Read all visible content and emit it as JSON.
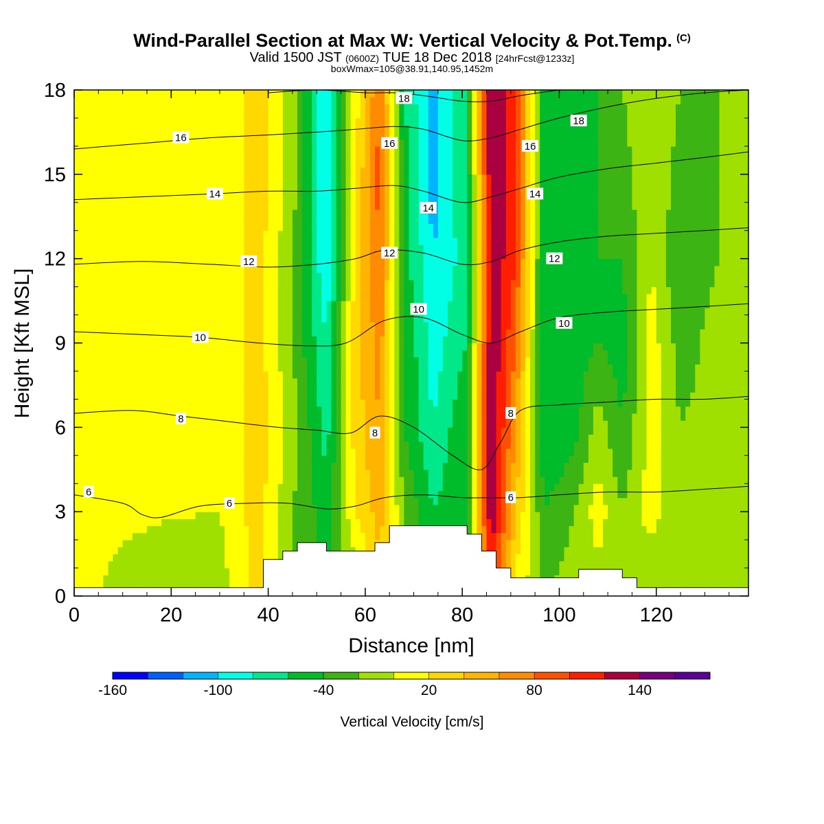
{
  "header": {
    "title": "Wind-Parallel Section at Max W: Vertical Velocity & Pot.Temp.",
    "copyright": "(C)",
    "valid_prefix": "Valid 1500 JST",
    "valid_utc": "(0600Z)",
    "valid_date": "TUE 18 Dec 2018",
    "forecast": "[24hrFcst@1233z]",
    "boxwmax": "boxWmax=105@38.91,140.95,1452m"
  },
  "chart_data": {
    "type": "heatmap",
    "xlabel": "Distance [nm]",
    "ylabel": "Height [Kft MSL]",
    "xlim": [
      0,
      139
    ],
    "ylim": [
      0,
      18
    ],
    "x_ticks": [
      0,
      20,
      40,
      60,
      80,
      100,
      120
    ],
    "y_ticks": [
      0,
      3,
      6,
      9,
      12,
      15,
      18
    ],
    "colorbar": {
      "title": "Vertical Velocity [cm/s]",
      "levels": [
        -160,
        -140,
        -120,
        -100,
        -80,
        -60,
        -40,
        -20,
        0,
        20,
        40,
        60,
        80,
        100,
        120,
        140,
        160,
        180
      ],
      "colors": [
        "#0000ff",
        "#0060ff",
        "#00b4ff",
        "#00ffe4",
        "#00e88a",
        "#00bb2a",
        "#3cb414",
        "#a0e000",
        "#ffff00",
        "#ffd800",
        "#ffb400",
        "#ff8c00",
        "#ff5000",
        "#ff1e00",
        "#aa0040",
        "#780080",
        "#5a0096"
      ],
      "tick_labels": [
        "-160",
        "-100",
        "-40",
        "20",
        "80",
        "140"
      ]
    },
    "velocity_columns": [
      {
        "x": 0,
        "w": [
          2,
          2,
          2,
          2,
          2,
          2,
          2
        ]
      },
      {
        "x": 30,
        "w": [
          -10,
          0,
          2,
          2,
          2,
          2,
          2
        ]
      },
      {
        "x": 38,
        "w": [
          30,
          30,
          30,
          30,
          30,
          30,
          30
        ]
      },
      {
        "x": 45,
        "w": [
          -20,
          -20,
          -10,
          -20,
          -20,
          -10,
          -10
        ]
      },
      {
        "x": 52,
        "w": [
          -40,
          -50,
          -70,
          -80,
          -100,
          -100,
          -100
        ]
      },
      {
        "x": 58,
        "w": [
          -20,
          20,
          30,
          30,
          30,
          20,
          10
        ]
      },
      {
        "x": 63,
        "w": [
          30,
          50,
          60,
          70,
          80,
          90,
          80
        ]
      },
      {
        "x": 68,
        "w": [
          -20,
          -20,
          -40,
          -40,
          -50,
          -50,
          -60
        ]
      },
      {
        "x": 74,
        "w": [
          -40,
          -60,
          -80,
          -90,
          -100,
          -110,
          -110
        ]
      },
      {
        "x": 81,
        "w": [
          -60,
          -40,
          -40,
          -60,
          -70,
          -60,
          -60
        ]
      },
      {
        "x": 86,
        "w": [
          100,
          140,
          140,
          140,
          140,
          140,
          140
        ]
      },
      {
        "x": 91,
        "w": [
          10,
          40,
          60,
          80,
          100,
          100,
          100
        ]
      },
      {
        "x": 97,
        "w": [
          -20,
          -40,
          -60,
          -60,
          -60,
          -60,
          -60
        ]
      },
      {
        "x": 103,
        "w": [
          -10,
          -20,
          -50,
          -50,
          -50,
          -50,
          -40
        ]
      },
      {
        "x": 108,
        "w": [
          -10,
          10,
          -10,
          -40,
          -40,
          -40,
          -40
        ]
      },
      {
        "x": 113,
        "w": [
          -10,
          -20,
          -40,
          -50,
          -40,
          -30,
          -20
        ]
      },
      {
        "x": 119,
        "w": [
          -20,
          10,
          10,
          10,
          0,
          0,
          0
        ]
      },
      {
        "x": 125,
        "w": [
          -20,
          -20,
          -20,
          -30,
          -40,
          -30,
          -20
        ]
      },
      {
        "x": 133,
        "w": [
          -20,
          -20,
          -10,
          -10,
          -20,
          -20,
          -20
        ]
      },
      {
        "x": 139,
        "w": [
          -20,
          -20,
          -10,
          -10,
          -10,
          -20,
          -20
        ]
      }
    ],
    "velocity_heights": [
      0,
      3,
      6,
      9,
      12,
      15,
      18
    ],
    "terrain": [
      [
        0,
        0.3
      ],
      [
        39,
        0.3
      ],
      [
        39,
        1.3
      ],
      [
        43,
        1.3
      ],
      [
        43,
        1.6
      ],
      [
        46,
        1.6
      ],
      [
        46,
        1.9
      ],
      [
        52,
        1.9
      ],
      [
        52,
        1.6
      ],
      [
        62,
        1.6
      ],
      [
        62,
        1.9
      ],
      [
        65,
        1.9
      ],
      [
        65,
        2.5
      ],
      [
        81,
        2.5
      ],
      [
        81,
        2.2
      ],
      [
        84,
        2.2
      ],
      [
        84,
        1.6
      ],
      [
        87,
        1.6
      ],
      [
        87,
        1.0
      ],
      [
        90,
        1.0
      ],
      [
        90,
        0.65
      ],
      [
        104,
        0.65
      ],
      [
        104,
        0.95
      ],
      [
        113,
        0.95
      ],
      [
        113,
        0.65
      ],
      [
        116,
        0.65
      ],
      [
        116,
        0.3
      ],
      [
        139,
        0.3
      ]
    ],
    "theta_contours": [
      {
        "label": "6",
        "points": [
          [
            0,
            3.6
          ],
          [
            10,
            3.3
          ],
          [
            14,
            2.9
          ],
          [
            18,
            2.8
          ],
          [
            26,
            3.2
          ],
          [
            36,
            3.3
          ],
          [
            44,
            3.3
          ],
          [
            52,
            3.1
          ],
          [
            58,
            3.2
          ],
          [
            64,
            3.5
          ],
          [
            72,
            3.6
          ],
          [
            80,
            3.5
          ],
          [
            86,
            3.5
          ],
          [
            92,
            3.5
          ],
          [
            100,
            3.6
          ],
          [
            110,
            3.7
          ],
          [
            120,
            3.7
          ],
          [
            130,
            3.8
          ],
          [
            139,
            3.9
          ]
        ]
      },
      {
        "label": "8",
        "points": [
          [
            0,
            6.5
          ],
          [
            12,
            6.6
          ],
          [
            22,
            6.4
          ],
          [
            32,
            6.2
          ],
          [
            42,
            6.0
          ],
          [
            50,
            5.9
          ],
          [
            57,
            5.8
          ],
          [
            63,
            6.4
          ],
          [
            70,
            6.0
          ],
          [
            78,
            5.0
          ],
          [
            84,
            4.5
          ],
          [
            88,
            5.5
          ],
          [
            92,
            6.6
          ],
          [
            100,
            6.8
          ],
          [
            110,
            6.9
          ],
          [
            120,
            7.0
          ],
          [
            130,
            7.0
          ],
          [
            139,
            7.1
          ]
        ]
      },
      {
        "label": "10",
        "points": [
          [
            0,
            9.4
          ],
          [
            14,
            9.3
          ],
          [
            26,
            9.2
          ],
          [
            38,
            9.0
          ],
          [
            48,
            8.9
          ],
          [
            56,
            9.0
          ],
          [
            64,
            9.8
          ],
          [
            72,
            9.9
          ],
          [
            80,
            9.3
          ],
          [
            86,
            9.0
          ],
          [
            92,
            9.4
          ],
          [
            100,
            9.9
          ],
          [
            110,
            10.1
          ],
          [
            120,
            10.2
          ],
          [
            130,
            10.3
          ],
          [
            139,
            10.4
          ]
        ]
      },
      {
        "label": "12",
        "points": [
          [
            0,
            11.8
          ],
          [
            14,
            11.9
          ],
          [
            28,
            11.8
          ],
          [
            40,
            11.7
          ],
          [
            50,
            11.8
          ],
          [
            58,
            12.0
          ],
          [
            64,
            12.3
          ],
          [
            72,
            12.2
          ],
          [
            80,
            11.8
          ],
          [
            86,
            11.9
          ],
          [
            92,
            12.3
          ],
          [
            100,
            12.6
          ],
          [
            110,
            12.8
          ],
          [
            120,
            12.9
          ],
          [
            130,
            13.0
          ],
          [
            139,
            13.1
          ]
        ]
      },
      {
        "label": "14",
        "points": [
          [
            0,
            14.1
          ],
          [
            14,
            14.2
          ],
          [
            28,
            14.3
          ],
          [
            40,
            14.4
          ],
          [
            50,
            14.4
          ],
          [
            58,
            14.5
          ],
          [
            66,
            14.6
          ],
          [
            72,
            14.4
          ],
          [
            80,
            14.0
          ],
          [
            86,
            14.2
          ],
          [
            92,
            14.5
          ],
          [
            100,
            14.9
          ],
          [
            110,
            15.2
          ],
          [
            120,
            15.4
          ],
          [
            130,
            15.6
          ],
          [
            139,
            15.8
          ]
        ]
      },
      {
        "label": "16",
        "points": [
          [
            0,
            15.9
          ],
          [
            14,
            16.1
          ],
          [
            28,
            16.3
          ],
          [
            40,
            16.4
          ],
          [
            50,
            16.5
          ],
          [
            58,
            16.6
          ],
          [
            66,
            16.7
          ],
          [
            72,
            16.6
          ],
          [
            80,
            16.2
          ],
          [
            86,
            16.3
          ],
          [
            92,
            16.6
          ],
          [
            100,
            17.0
          ],
          [
            110,
            17.4
          ],
          [
            120,
            17.7
          ],
          [
            130,
            17.9
          ],
          [
            139,
            18.0
          ]
        ]
      },
      {
        "label": "18",
        "points": [
          [
            40,
            17.9
          ],
          [
            50,
            18.0
          ],
          [
            60,
            17.9
          ],
          [
            66,
            17.9
          ],
          [
            72,
            17.8
          ],
          [
            80,
            17.6
          ],
          [
            86,
            17.6
          ],
          [
            92,
            17.8
          ],
          [
            100,
            18.0
          ]
        ]
      }
    ],
    "contour_labels": [
      {
        "text": "6",
        "x": 3,
        "y": 3.7
      },
      {
        "text": "6",
        "x": 32,
        "y": 3.3
      },
      {
        "text": "6",
        "x": 90,
        "y": 3.5
      },
      {
        "text": "8",
        "x": 22,
        "y": 6.3
      },
      {
        "text": "8",
        "x": 62,
        "y": 5.8
      },
      {
        "text": "8",
        "x": 90,
        "y": 6.5
      },
      {
        "text": "10",
        "x": 26,
        "y": 9.2
      },
      {
        "text": "10",
        "x": 71,
        "y": 10.2
      },
      {
        "text": "10",
        "x": 101,
        "y": 9.7
      },
      {
        "text": "12",
        "x": 36,
        "y": 11.9
      },
      {
        "text": "12",
        "x": 65,
        "y": 12.2
      },
      {
        "text": "12",
        "x": 99,
        "y": 12.0
      },
      {
        "text": "14",
        "x": 29,
        "y": 14.3
      },
      {
        "text": "14",
        "x": 73,
        "y": 13.8
      },
      {
        "text": "14",
        "x": 95,
        "y": 14.3
      },
      {
        "text": "16",
        "x": 22,
        "y": 16.3
      },
      {
        "text": "16",
        "x": 65,
        "y": 16.1
      },
      {
        "text": "16",
        "x": 94,
        "y": 16.0
      },
      {
        "text": "18",
        "x": 68,
        "y": 17.7
      },
      {
        "text": "18",
        "x": 104,
        "y": 16.9
      }
    ]
  }
}
